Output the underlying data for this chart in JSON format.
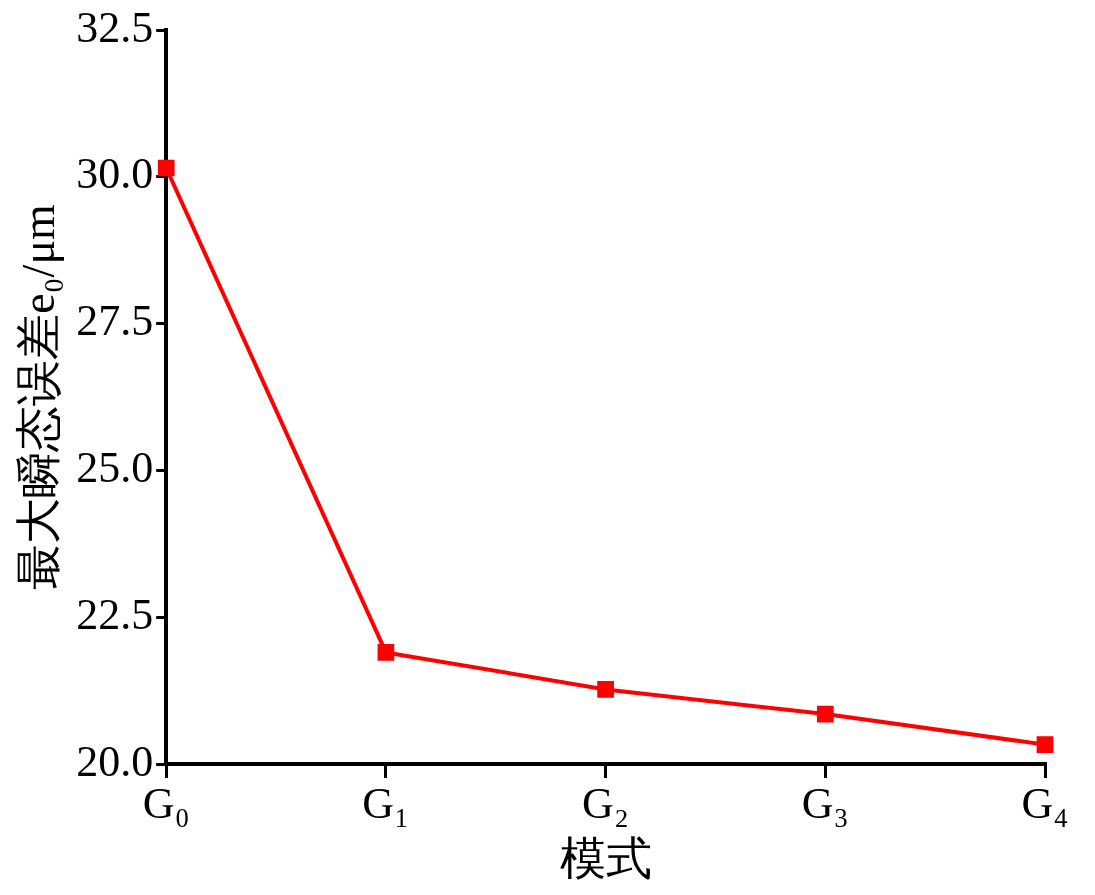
{
  "chart_data": {
    "type": "line",
    "xlabel": "模式",
    "ylabel": "最大瞬态误差e₀/μm",
    "categories": [
      "G₀",
      "G₁",
      "G₂",
      "G₃",
      "G₄"
    ],
    "series": [
      {
        "color": "#ff0000",
        "values": [
          30.15,
          21.9,
          21.27,
          20.85,
          20.33
        ]
      }
    ],
    "ylim": [
      20,
      32.5
    ],
    "yticks": [
      {
        "value": 20,
        "label": "20.0"
      },
      {
        "value": 22.5,
        "label": "22.5"
      },
      {
        "value": 25,
        "label": "25.0"
      },
      {
        "value": 27.5,
        "label": "27.5"
      },
      {
        "value": 30,
        "label": "30.0"
      },
      {
        "value": 32.5,
        "label": "32.5"
      }
    ],
    "grid": false,
    "legend": false,
    "marker": "square",
    "line_style": "solid"
  }
}
